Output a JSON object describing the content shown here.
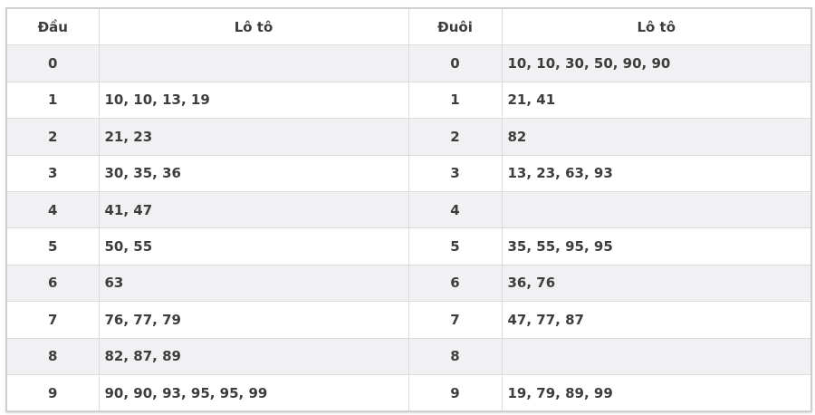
{
  "headers": [
    "Đầu",
    "Lô tô",
    "Đuôi",
    "Lô tô"
  ],
  "rows": [
    {
      "dau": "0",
      "dau_loto": "",
      "duoi": "0",
      "duoi_loto": "10, 10, 30, 50, 90, 90"
    },
    {
      "dau": "1",
      "dau_loto": "10, 10, 13, 19",
      "duoi": "1",
      "duoi_loto": "21, 41"
    },
    {
      "dau": "2",
      "dau_loto": "21, 23",
      "duoi": "2",
      "duoi_loto": "82"
    },
    {
      "dau": "3",
      "dau_loto": "30, 35, 36",
      "duoi": "3",
      "duoi_loto": "13, 23, 63, 93"
    },
    {
      "dau": "4",
      "dau_loto": "41, 47",
      "duoi": "4",
      "duoi_loto": ""
    },
    {
      "dau": "5",
      "dau_loto": "50, 55",
      "duoi": "5",
      "duoi_loto": "35, 55, 95, 95"
    },
    {
      "dau": "6",
      "dau_loto": "63",
      "duoi": "6",
      "duoi_loto": "36, 76"
    },
    {
      "dau": "7",
      "dau_loto": "76, 77, 79",
      "duoi": "7",
      "duoi_loto": "47, 77, 87"
    },
    {
      "dau": "8",
      "dau_loto": "82, 87, 89",
      "duoi": "8",
      "duoi_loto": ""
    },
    {
      "dau": "9",
      "dau_loto": "90, 90, 93, 95, 95, 99",
      "duoi": "9",
      "duoi_loto": "19, 79, 89, 99"
    }
  ]
}
